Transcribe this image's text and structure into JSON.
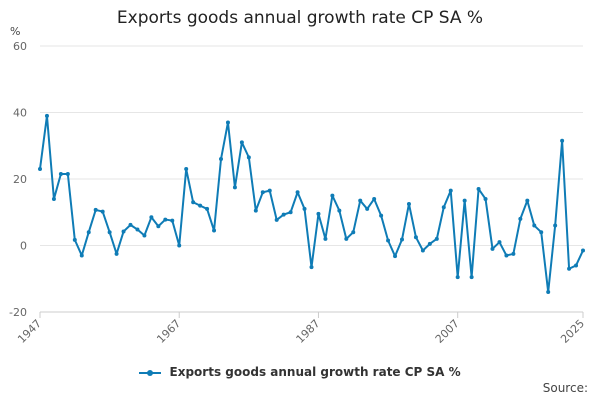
{
  "chart_data": {
    "type": "line",
    "title": "Exports goods annual growth rate CP SA %",
    "ylabel": "%",
    "xlabel": "",
    "ylim": [
      -20,
      60
    ],
    "yticks": [
      -20,
      0,
      20,
      40,
      60
    ],
    "xticks": [
      "1947",
      "1967",
      "1987",
      "2007",
      "2025"
    ],
    "grid": true,
    "legend_position": "bottom",
    "x": [
      1947,
      1948,
      1949,
      1950,
      1951,
      1952,
      1953,
      1954,
      1955,
      1956,
      1957,
      1958,
      1959,
      1960,
      1961,
      1962,
      1963,
      1964,
      1965,
      1966,
      1967,
      1968,
      1969,
      1970,
      1971,
      1972,
      1973,
      1974,
      1975,
      1976,
      1977,
      1978,
      1979,
      1980,
      1981,
      1982,
      1983,
      1984,
      1985,
      1986,
      1987,
      1988,
      1989,
      1990,
      1991,
      1992,
      1993,
      1994,
      1995,
      1996,
      1997,
      1998,
      1999,
      2000,
      2001,
      2002,
      2003,
      2004,
      2005,
      2006,
      2007,
      2008,
      2009,
      2010,
      2011,
      2012,
      2013,
      2014,
      2015,
      2016,
      2017,
      2018,
      2019,
      2020,
      2021,
      2022,
      2023,
      2024,
      2025
    ],
    "series": [
      {
        "name": "Exports goods annual growth rate CP SA %",
        "color": "#0f7cb6",
        "values": [
          23,
          39,
          14,
          21.5,
          21.5,
          1.7,
          -3,
          4,
          10.7,
          10.2,
          4,
          -2.5,
          4.2,
          6.2,
          4.8,
          3,
          8.5,
          5.8,
          7.8,
          7.5,
          0,
          23,
          13,
          12,
          11,
          4.5,
          26,
          37,
          17.5,
          31,
          26.5,
          10.5,
          16,
          16.5,
          7.7,
          9.3,
          10,
          16,
          11,
          -6.5,
          9.5,
          2,
          15,
          10.5,
          2,
          4,
          13.5,
          11,
          14,
          9,
          1.5,
          -3.2,
          1.8,
          12.5,
          2.5,
          -1.5,
          0.5,
          2,
          11.5,
          16.5,
          -9.5,
          13.5,
          -9.5,
          17,
          14,
          -1,
          1,
          -3,
          -2.5,
          8,
          13.5,
          6,
          4,
          -14,
          6,
          31.5,
          -7,
          -6,
          -1.5
        ]
      }
    ]
  },
  "source_label": "Source:"
}
